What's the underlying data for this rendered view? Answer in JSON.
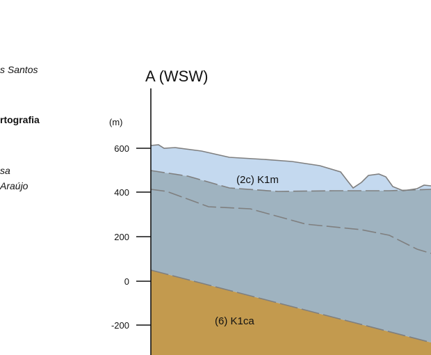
{
  "left_panel": {
    "author": "s Santos",
    "heading": "rtografia",
    "credit_line1": "sa",
    "credit_line2": "Araújo"
  },
  "section": {
    "title": "A (WSW)",
    "y_unit": "(m)",
    "y_ticks": [
      "600",
      "400",
      "200",
      "0",
      "-200"
    ],
    "layers": [
      {
        "label": "(2c) K1m",
        "color": "#c4d9ef"
      },
      {
        "label": "",
        "color": "#9fb3c0"
      },
      {
        "label": "(6) K1ca",
        "color": "#c39a4e"
      }
    ],
    "contact_color": "#7f7f7f"
  }
}
